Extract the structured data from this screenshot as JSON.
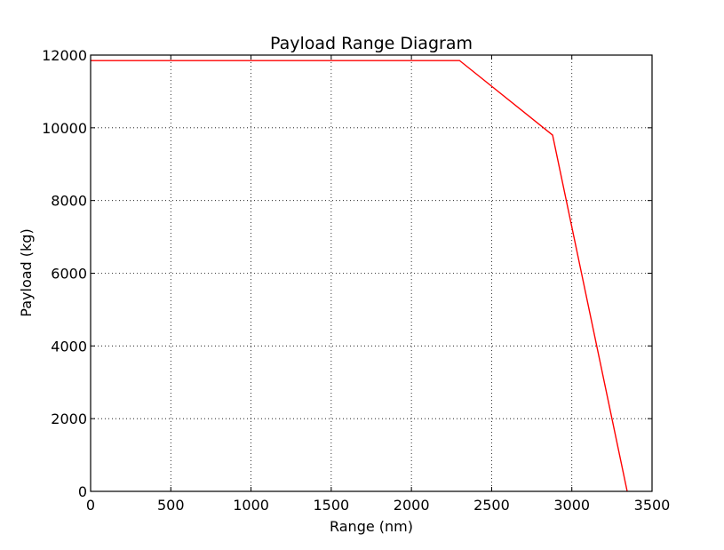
{
  "chart_data": {
    "type": "line",
    "title": "Payload Range Diagram",
    "xlabel": "Range (nm)",
    "ylabel": "Payload (kg)",
    "xlim": [
      0,
      3500
    ],
    "ylim": [
      0,
      12000
    ],
    "xticks": [
      "0",
      "500",
      "1000",
      "1500",
      "2000",
      "2500",
      "3000",
      "3500"
    ],
    "yticks": [
      "0",
      "2000",
      "4000",
      "6000",
      "8000",
      "10000",
      "12000"
    ],
    "grid": true,
    "grid_style": "dotted",
    "series": [
      {
        "color": "#ff0000",
        "x": [
          0,
          2300,
          2880,
          3345
        ],
        "y": [
          11850,
          11850,
          9800,
          0
        ]
      }
    ]
  }
}
